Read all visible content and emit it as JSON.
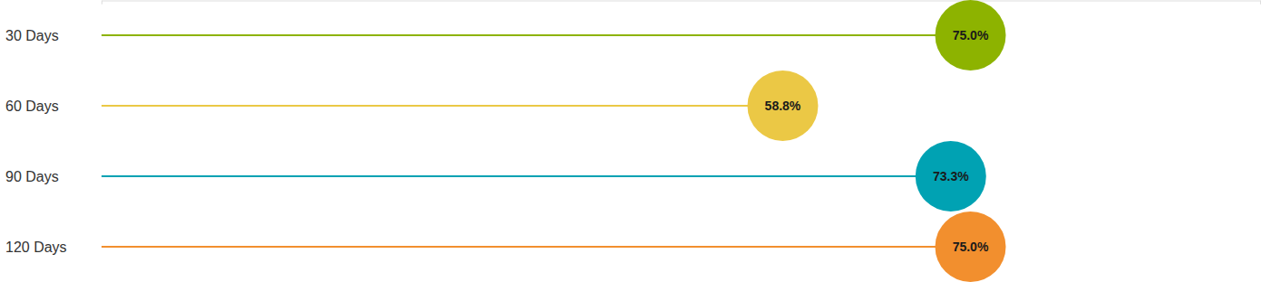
{
  "chart_data": {
    "type": "lollipop",
    "orientation": "horizontal",
    "categories": [
      "30 Days",
      "60 Days",
      "90 Days",
      "120 Days"
    ],
    "values": [
      75.0,
      58.8,
      73.3,
      75.0
    ],
    "value_labels": [
      "75.0%",
      "58.8%",
      "73.3%",
      "75.0%"
    ],
    "colors": [
      "#8db300",
      "#ebc845",
      "#00a2b3",
      "#f28f2e"
    ],
    "xlim": [
      0,
      100
    ],
    "xticks": [
      0,
      100
    ],
    "data_labels": true,
    "tick_labels": "y",
    "grid": false
  }
}
